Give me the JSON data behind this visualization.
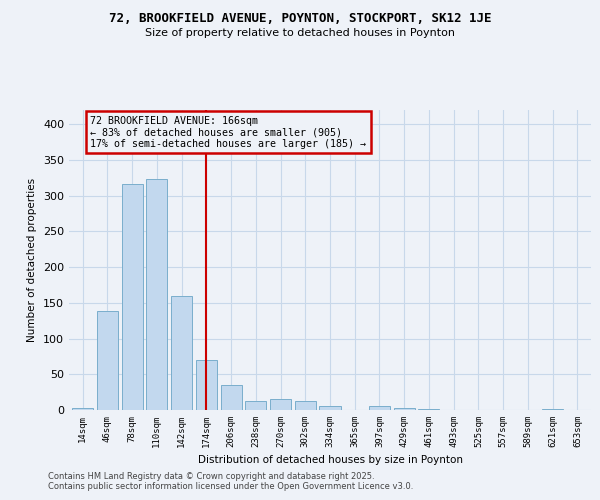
{
  "title_line1": "72, BROOKFIELD AVENUE, POYNTON, STOCKPORT, SK12 1JE",
  "title_line2": "Size of property relative to detached houses in Poynton",
  "xlabel": "Distribution of detached houses by size in Poynton",
  "ylabel": "Number of detached properties",
  "bar_labels": [
    "14sqm",
    "46sqm",
    "78sqm",
    "110sqm",
    "142sqm",
    "174sqm",
    "206sqm",
    "238sqm",
    "270sqm",
    "302sqm",
    "334sqm",
    "365sqm",
    "397sqm",
    "429sqm",
    "461sqm",
    "493sqm",
    "525sqm",
    "557sqm",
    "589sqm",
    "621sqm",
    "653sqm"
  ],
  "bar_values": [
    3,
    138,
    316,
    323,
    160,
    70,
    35,
    12,
    15,
    12,
    6,
    0,
    5,
    3,
    1,
    0,
    0,
    0,
    0,
    2,
    0
  ],
  "bar_color": "#c2d8ee",
  "bar_edge_color": "#7aaecc",
  "vline_x_index": 5,
  "vline_color": "#cc0000",
  "annotation_text": "72 BROOKFIELD AVENUE: 166sqm\n← 83% of detached houses are smaller (905)\n17% of semi-detached houses are larger (185) →",
  "annotation_box_facecolor": "#eef2f8",
  "annotation_box_edgecolor": "#cc0000",
  "ylim": [
    0,
    420
  ],
  "yticks": [
    0,
    50,
    100,
    150,
    200,
    250,
    300,
    350,
    400
  ],
  "grid_color": "#c8d8ea",
  "background_color": "#eef2f8",
  "footer_line1": "Contains HM Land Registry data © Crown copyright and database right 2025.",
  "footer_line2": "Contains public sector information licensed under the Open Government Licence v3.0."
}
